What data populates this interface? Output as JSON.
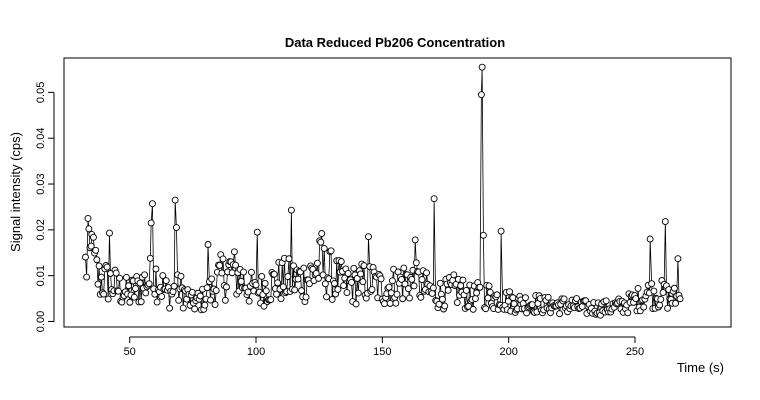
{
  "chart_data": {
    "type": "line",
    "title": "Data Reduced Pb206 Concentration",
    "xlabel": "Time (s)",
    "ylabel": "Signal intensity (cps)",
    "xlim": [
      24,
      288
    ],
    "ylim": [
      -0.0012,
      0.0575
    ],
    "x_ticks": [
      50,
      100,
      150,
      200,
      250
    ],
    "y_ticks": [
      0.0,
      0.01,
      0.02,
      0.03,
      0.04,
      0.05
    ],
    "y_tick_labels": [
      "0.00",
      "0.01",
      "0.02",
      "0.03",
      "0.04",
      "0.05"
    ],
    "grid": false,
    "legend": "none",
    "series": [
      {
        "name": "Pb206",
        "marker": "open-circle",
        "color": "#000000",
        "x_start": 32.5,
        "x_end": 268,
        "baseline_segments": [
          [
            32.5,
            0.012
          ],
          [
            35,
            0.014
          ],
          [
            38,
            0.009
          ],
          [
            42,
            0.0085
          ],
          [
            46,
            0.007
          ],
          [
            50,
            0.006
          ],
          [
            55,
            0.008
          ],
          [
            60,
            0.01
          ],
          [
            65,
            0.006
          ],
          [
            70,
            0.007
          ],
          [
            75,
            0.004
          ],
          [
            80,
            0.005
          ],
          [
            85,
            0.009
          ],
          [
            90,
            0.011
          ],
          [
            95,
            0.009
          ],
          [
            100,
            0.006
          ],
          [
            105,
            0.008
          ],
          [
            110,
            0.009
          ],
          [
            115,
            0.009
          ],
          [
            120,
            0.009
          ],
          [
            125,
            0.012
          ],
          [
            130,
            0.01
          ],
          [
            135,
            0.008
          ],
          [
            140,
            0.008
          ],
          [
            145,
            0.009
          ],
          [
            150,
            0.007
          ],
          [
            155,
            0.008
          ],
          [
            160,
            0.009
          ],
          [
            165,
            0.008
          ],
          [
            170,
            0.006
          ],
          [
            175,
            0.006
          ],
          [
            180,
            0.007
          ],
          [
            185,
            0.005
          ],
          [
            190,
            0.006
          ],
          [
            195,
            0.005
          ],
          [
            200,
            0.0045
          ],
          [
            205,
            0.004
          ],
          [
            210,
            0.004
          ],
          [
            215,
            0.0035
          ],
          [
            220,
            0.0035
          ],
          [
            225,
            0.0035
          ],
          [
            230,
            0.003
          ],
          [
            235,
            0.003
          ],
          [
            240,
            0.003
          ],
          [
            245,
            0.0035
          ],
          [
            250,
            0.0045
          ],
          [
            255,
            0.006
          ],
          [
            260,
            0.006
          ],
          [
            265,
            0.005
          ],
          [
            268,
            0.005
          ]
        ],
        "spikes": [
          [
            33.5,
            0.0225
          ],
          [
            35.0,
            0.019
          ],
          [
            42.0,
            0.0193
          ],
          [
            58.5,
            0.0215
          ],
          [
            59.0,
            0.0257
          ],
          [
            68.0,
            0.0265
          ],
          [
            68.5,
            0.0205
          ],
          [
            81.0,
            0.0168
          ],
          [
            100.5,
            0.0195
          ],
          [
            114.0,
            0.0243
          ],
          [
            126.0,
            0.0192
          ],
          [
            144.5,
            0.0185
          ],
          [
            163.0,
            0.0178
          ],
          [
            170.5,
            0.0268
          ],
          [
            189.2,
            0.0495
          ],
          [
            189.5,
            0.0555
          ],
          [
            189.8,
            0.031
          ],
          [
            190.0,
            0.0188
          ],
          [
            197.0,
            0.0197
          ],
          [
            256.0,
            0.018
          ],
          [
            262.0,
            0.0218
          ],
          [
            267.0,
            0.0137
          ]
        ]
      }
    ]
  }
}
